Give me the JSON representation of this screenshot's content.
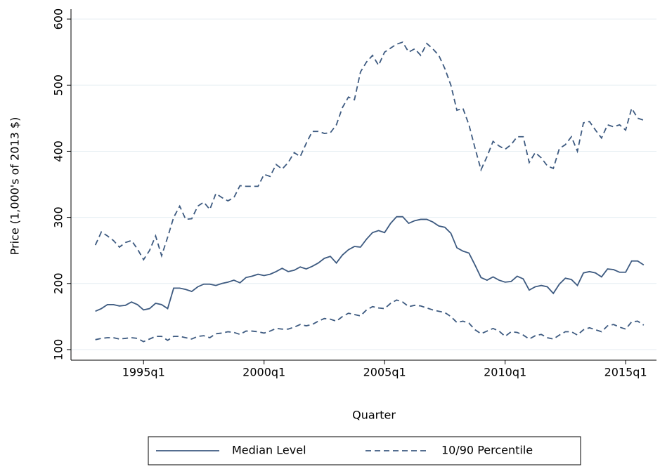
{
  "chart_data": {
    "type": "line",
    "y_label": "Price (1,000's of 2013 $)",
    "x_label": "Quarter",
    "x": [
      1993,
      1993.25,
      1993.5,
      1993.75,
      1994,
      1994.25,
      1994.5,
      1994.75,
      1995,
      1995.25,
      1995.5,
      1995.75,
      1996,
      1996.25,
      1996.5,
      1996.75,
      1997,
      1997.25,
      1997.5,
      1997.75,
      1998,
      1998.25,
      1998.5,
      1998.75,
      1999,
      1999.25,
      1999.5,
      1999.75,
      2000,
      2000.25,
      2000.5,
      2000.75,
      2001,
      2001.25,
      2001.5,
      2001.75,
      2002,
      2002.25,
      2002.5,
      2002.75,
      2003,
      2003.25,
      2003.5,
      2003.75,
      2004,
      2004.25,
      2004.5,
      2004.75,
      2005,
      2005.25,
      2005.5,
      2005.75,
      2006,
      2006.25,
      2006.5,
      2006.75,
      2007,
      2007.25,
      2007.5,
      2007.75,
      2008,
      2008.25,
      2008.5,
      2008.75,
      2009,
      2009.25,
      2009.5,
      2009.75,
      2010,
      2010.25,
      2010.5,
      2010.75,
      2011,
      2011.25,
      2011.5,
      2011.75,
      2012,
      2012.25,
      2012.5,
      2012.75,
      2013,
      2013.25,
      2013.5,
      2013.75,
      2014,
      2014.25,
      2014.5,
      2014.75,
      2015,
      2015.25,
      2015.5,
      2015.75
    ],
    "series": [
      {
        "name": "Median Level",
        "color": "#3d5a80",
        "dash": "solid",
        "values": [
          158,
          162,
          168,
          168,
          166,
          167,
          172,
          168,
          160,
          162,
          170,
          168,
          162,
          193,
          193,
          191,
          188,
          195,
          199,
          199,
          197,
          200,
          202,
          205,
          201,
          209,
          211,
          214,
          212,
          214,
          218,
          223,
          218,
          220,
          225,
          222,
          226,
          231,
          238,
          241,
          231,
          243,
          251,
          256,
          255,
          267,
          277,
          280,
          277,
          291,
          301,
          301,
          291,
          295,
          297,
          297,
          293,
          287,
          285,
          276,
          254,
          249,
          246,
          228,
          209,
          205,
          210,
          205,
          202,
          203,
          211,
          207,
          190,
          195,
          197,
          195,
          185,
          199,
          208,
          206,
          197,
          216,
          218,
          216,
          210,
          222,
          221,
          217,
          217,
          234,
          234,
          228
        ]
      },
      {
        "name": "10/90 Percentile",
        "color": "#3d5a80",
        "dash": "dashed",
        "values": [
          258,
          278,
          272,
          265,
          255,
          262,
          265,
          252,
          236,
          250,
          272,
          242,
          270,
          300,
          317,
          297,
          298,
          317,
          323,
          312,
          336,
          330,
          325,
          330,
          348,
          347,
          347,
          347,
          365,
          362,
          380,
          373,
          383,
          398,
          392,
          412,
          430,
          430,
          427,
          428,
          440,
          466,
          482,
          478,
          520,
          535,
          545,
          530,
          550,
          556,
          562,
          565,
          550,
          555,
          545,
          563,
          555,
          545,
          525,
          500,
          462,
          465,
          440,
          405,
          372,
          392,
          415,
          408,
          403,
          410,
          422,
          422,
          383,
          398,
          390,
          378,
          374,
          404,
          410,
          422,
          400,
          443,
          445,
          432,
          420,
          440,
          437,
          440,
          432,
          465,
          450,
          447
        ]
      },
      {
        "color": "#3d5a80",
        "dash": "dashed",
        "values": [
          115,
          117,
          118,
          118,
          116,
          117,
          118,
          117,
          112,
          116,
          120,
          120,
          114,
          120,
          120,
          118,
          116,
          120,
          121,
          118,
          124,
          125,
          127,
          126,
          123,
          128,
          128,
          127,
          125,
          128,
          132,
          131,
          131,
          134,
          138,
          136,
          138,
          143,
          147,
          146,
          143,
          150,
          155,
          153,
          151,
          160,
          165,
          163,
          162,
          170,
          175,
          172,
          165,
          167,
          166,
          163,
          160,
          158,
          156,
          150,
          141,
          143,
          140,
          130,
          124,
          128,
          132,
          128,
          120,
          127,
          126,
          122,
          116,
          121,
          123,
          118,
          116,
          122,
          127,
          127,
          122,
          130,
          133,
          130,
          127,
          136,
          138,
          134,
          131,
          142,
          143,
          137
        ]
      }
    ],
    "xlim": [
      1991.99,
      2016.28
    ],
    "xticks": [
      {
        "value": 1995,
        "label": "1995q1"
      },
      {
        "value": 2000,
        "label": "2000q1"
      },
      {
        "value": 2005,
        "label": "2005q1"
      },
      {
        "value": 2010,
        "label": "2010q1"
      },
      {
        "value": 2015,
        "label": "2015q1"
      }
    ],
    "ylim": [
      84,
      615
    ],
    "yticks": [
      100,
      200,
      300,
      400,
      500,
      600
    ],
    "grid": true,
    "legend": "bottom"
  }
}
